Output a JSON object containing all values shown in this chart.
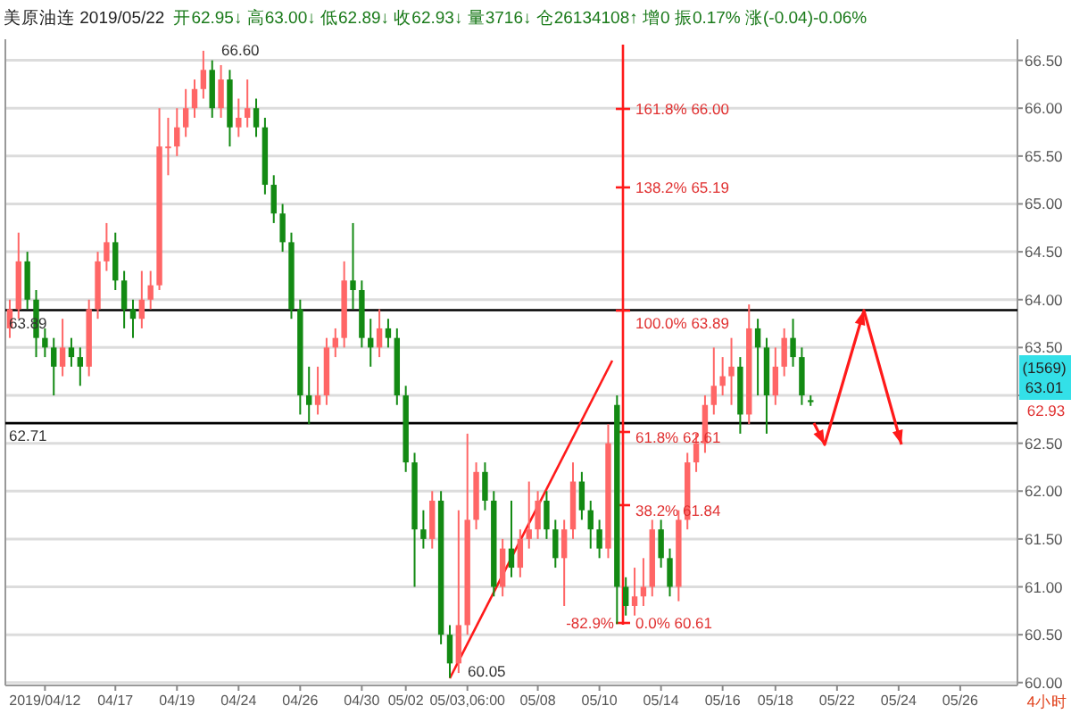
{
  "chart_data": {
    "type": "candlestick",
    "title": "美原油连 2019/05/22",
    "subtitle": "开62.95↓ 高63.00↓ 低62.89↓ 收62.93↓ 量3716↓ 仓26134108↑ 增0 振0.17% 涨(-0.04)-0.06%",
    "categories": [
      null,
      null,
      null,
      null,
      "2019/04/12",
      null,
      null,
      null,
      null,
      null,
      null,
      null,
      "04/17",
      null,
      null,
      null,
      null,
      null,
      null,
      "04/19",
      null,
      null,
      null,
      null,
      null,
      null,
      "04/24",
      null,
      null,
      null,
      null,
      null,
      null,
      "04/26",
      null,
      null,
      null,
      null,
      null,
      null,
      "04/30",
      null,
      null,
      null,
      null,
      "05/02",
      null,
      null,
      null,
      null,
      null,
      null,
      "05/03,06:00",
      null,
      null,
      null,
      null,
      null,
      null,
      null,
      "05/08",
      null,
      null,
      null,
      null,
      null,
      null,
      "05/10",
      null,
      null,
      null,
      null,
      null,
      null,
      "05/14",
      null,
      null,
      null,
      null,
      null,
      null,
      "05/16",
      null,
      null,
      null,
      null,
      null,
      "05/18",
      null,
      null,
      null,
      null,
      null,
      null,
      "05/22",
      null,
      null,
      null,
      null,
      null,
      null,
      "05/24",
      null,
      null,
      null,
      null,
      null,
      null,
      "05/26",
      null,
      null,
      null,
      null,
      null,
      null
    ],
    "ohlc": [
      [
        63.7,
        64.0,
        63.6,
        63.9
      ],
      [
        63.9,
        64.7,
        63.8,
        64.4
      ],
      [
        64.4,
        64.5,
        63.9,
        64.0
      ],
      [
        64.0,
        64.1,
        63.4,
        63.6
      ],
      [
        63.6,
        63.7,
        63.4,
        63.5
      ],
      [
        63.5,
        63.6,
        63.0,
        63.3
      ],
      [
        63.3,
        63.8,
        63.2,
        63.5
      ],
      [
        63.5,
        63.6,
        63.3,
        63.4
      ],
      [
        63.4,
        63.5,
        63.1,
        63.3
      ],
      [
        63.3,
        64.0,
        63.2,
        63.9
      ],
      [
        63.9,
        64.5,
        63.8,
        64.4
      ],
      [
        64.4,
        64.8,
        64.3,
        64.6
      ],
      [
        64.6,
        64.7,
        64.1,
        64.2
      ],
      [
        64.2,
        64.3,
        63.7,
        63.9
      ],
      [
        63.9,
        64.0,
        63.6,
        63.8
      ],
      [
        63.8,
        64.3,
        63.7,
        64.0
      ],
      [
        64.0,
        64.3,
        63.9,
        64.15
      ],
      [
        64.15,
        66.0,
        64.1,
        65.6
      ],
      [
        65.6,
        65.9,
        65.3,
        65.6
      ],
      [
        65.6,
        66.0,
        65.5,
        65.8
      ],
      [
        65.8,
        66.2,
        65.7,
        66.0
      ],
      [
        66.0,
        66.3,
        65.9,
        66.2
      ],
      [
        66.2,
        66.6,
        66.1,
        66.4
      ],
      [
        66.4,
        66.5,
        65.9,
        66.0
      ],
      [
        66.0,
        66.45,
        65.9,
        66.3
      ],
      [
        66.3,
        66.4,
        65.6,
        65.8
      ],
      [
        65.8,
        66.1,
        65.7,
        65.9
      ],
      [
        65.9,
        66.3,
        65.8,
        66.0
      ],
      [
        66.0,
        66.1,
        65.7,
        65.8
      ],
      [
        65.8,
        65.9,
        65.1,
        65.2
      ],
      [
        65.2,
        65.3,
        64.8,
        64.9
      ],
      [
        64.9,
        65.0,
        64.5,
        64.6
      ],
      [
        64.6,
        64.7,
        63.8,
        63.9
      ],
      [
        63.9,
        64.0,
        62.8,
        63.0
      ],
      [
        63.0,
        63.3,
        62.7,
        62.9
      ],
      [
        62.9,
        63.3,
        62.8,
        63.0
      ],
      [
        63.0,
        63.6,
        62.9,
        63.5
      ],
      [
        63.5,
        63.7,
        63.4,
        63.6
      ],
      [
        63.6,
        64.4,
        63.5,
        64.2
      ],
      [
        64.2,
        64.8,
        63.9,
        64.1
      ],
      [
        64.1,
        64.2,
        63.5,
        63.6
      ],
      [
        63.6,
        63.8,
        63.3,
        63.5
      ],
      [
        63.5,
        63.9,
        63.4,
        63.7
      ],
      [
        63.7,
        63.8,
        63.5,
        63.6
      ],
      [
        63.6,
        63.7,
        62.9,
        63.0
      ],
      [
        63.0,
        63.1,
        62.2,
        62.3
      ],
      [
        62.3,
        62.4,
        61.0,
        61.6
      ],
      [
        61.6,
        61.8,
        61.4,
        61.5
      ],
      [
        61.5,
        62.0,
        61.4,
        61.9
      ],
      [
        61.9,
        62.0,
        60.4,
        60.5
      ],
      [
        60.5,
        60.6,
        60.05,
        60.2
      ],
      [
        60.2,
        61.8,
        60.1,
        60.6
      ],
      [
        60.6,
        62.6,
        60.5,
        61.7
      ],
      [
        61.7,
        62.3,
        61.6,
        62.2
      ],
      [
        62.2,
        62.3,
        61.8,
        61.9
      ],
      [
        61.9,
        62.0,
        60.9,
        61.0
      ],
      [
        61.0,
        61.5,
        60.9,
        61.4
      ],
      [
        61.4,
        61.9,
        61.1,
        61.2
      ],
      [
        61.2,
        61.6,
        61.1,
        61.5
      ],
      [
        61.5,
        62.1,
        61.4,
        61.6
      ],
      [
        61.6,
        62.0,
        61.5,
        61.9
      ],
      [
        61.9,
        62.0,
        61.5,
        61.6
      ],
      [
        61.6,
        61.7,
        61.2,
        61.3
      ],
      [
        61.3,
        61.7,
        60.8,
        61.6
      ],
      [
        61.6,
        62.3,
        61.5,
        62.1
      ],
      [
        62.1,
        62.2,
        61.7,
        61.8
      ],
      [
        61.8,
        61.9,
        61.4,
        61.6
      ],
      [
        61.6,
        61.7,
        61.3,
        61.4
      ],
      [
        61.4,
        62.7,
        61.3,
        62.5
      ],
      [
        62.9,
        63.0,
        60.61,
        61.0
      ],
      [
        61.0,
        61.1,
        60.7,
        60.8
      ],
      [
        60.8,
        61.2,
        60.7,
        60.9
      ],
      [
        60.9,
        61.3,
        60.8,
        61.0
      ],
      [
        61.0,
        61.7,
        60.9,
        61.6
      ],
      [
        61.6,
        61.7,
        61.2,
        61.3
      ],
      [
        61.3,
        61.4,
        60.9,
        61.0
      ],
      [
        61.0,
        61.8,
        60.85,
        61.7
      ],
      [
        61.7,
        62.4,
        61.6,
        62.3
      ],
      [
        62.3,
        62.6,
        62.2,
        62.5
      ],
      [
        62.5,
        63.0,
        62.4,
        62.9
      ],
      [
        62.9,
        63.5,
        62.8,
        63.1
      ],
      [
        63.1,
        63.4,
        63.0,
        63.2
      ],
      [
        63.2,
        63.6,
        62.9,
        63.3
      ],
      [
        63.3,
        63.4,
        62.6,
        62.8
      ],
      [
        62.8,
        63.95,
        62.7,
        63.7
      ],
      [
        63.7,
        63.8,
        63.0,
        63.5
      ],
      [
        63.5,
        63.6,
        62.6,
        63.0
      ],
      [
        63.0,
        63.5,
        62.9,
        63.3
      ],
      [
        63.3,
        63.7,
        63.2,
        63.6
      ],
      [
        63.6,
        63.8,
        63.3,
        63.4
      ],
      [
        63.4,
        63.5,
        62.9,
        63.0
      ],
      [
        62.95,
        63.0,
        62.89,
        62.93
      ],
      null,
      null,
      null,
      null,
      null,
      null,
      null,
      null,
      null,
      null,
      null,
      null,
      null,
      null,
      null,
      null,
      null,
      null,
      null,
      null,
      null,
      null,
      null
    ],
    "colors": [
      "#ff6666",
      "#ff6666",
      "#138a13",
      "#138a13",
      "#138a13",
      "#138a13",
      "#ff6666",
      "#138a13",
      "#138a13",
      "#ff6666",
      "#ff6666",
      "#ff6666",
      "#138a13",
      "#138a13",
      "#138a13",
      "#ff6666",
      "#ff6666",
      "#ff6666",
      "#ff6666",
      "#ff6666",
      "#ff6666",
      "#ff6666",
      "#ff6666",
      "#138a13",
      "#ff6666",
      "#138a13",
      "#ff6666",
      "#ff6666",
      "#138a13",
      "#138a13",
      "#138a13",
      "#138a13",
      "#138a13",
      "#138a13",
      "#138a13",
      "#ff6666",
      "#ff6666",
      "#ff6666",
      "#ff6666",
      "#138a13",
      "#138a13",
      "#138a13",
      "#ff6666",
      "#138a13",
      "#138a13",
      "#138a13",
      "#138a13",
      "#138a13",
      "#ff6666",
      "#138a13",
      "#138a13",
      "#ff6666",
      "#ff6666",
      "#ff6666",
      "#138a13",
      "#138a13",
      "#ff6666",
      "#138a13",
      "#ff6666",
      "#ff6666",
      "#ff6666",
      "#138a13",
      "#138a13",
      "#ff6666",
      "#ff6666",
      "#138a13",
      "#138a13",
      "#138a13",
      "#ff6666",
      "#138a13",
      "#138a13",
      "#ff6666",
      "#ff6666",
      "#ff6666",
      "#138a13",
      "#138a13",
      "#ff6666",
      "#ff6666",
      "#ff6666",
      "#ff6666",
      "#ff6666",
      "#ff6666",
      "#ff6666",
      "#138a13",
      "#ff6666",
      "#138a13",
      "#138a13",
      "#ff6666",
      "#ff6666",
      "#138a13",
      "#138a13",
      "#138a13",
      null,
      null,
      null,
      null,
      null,
      null,
      null,
      null,
      null,
      null,
      null,
      null,
      null,
      null,
      null,
      null,
      null,
      null,
      null,
      null,
      null,
      null,
      null
    ],
    "ref_lines": [
      {
        "axis": "y",
        "value": 63.89,
        "label": "63.89",
        "color": "#000000"
      },
      {
        "axis": "y",
        "value": 62.71,
        "label": "62.71",
        "color": "#000000"
      }
    ],
    "annotations": [
      "66.60",
      "60.05",
      "161.8% 66.00",
      "138.2% 65.19",
      "100.0% 63.89",
      "61.8% 62.61",
      "38.2% 61.84",
      "0.0% 60.61",
      "-82.9%",
      "(1569)",
      "63.01",
      "62.93",
      "4小时"
    ],
    "ylim": [
      59.97,
      66.72
    ],
    "yticks": [
      {
        "value": 60,
        "label": "60.00"
      },
      {
        "value": 60.5,
        "label": "60.50"
      },
      {
        "value": 61,
        "label": "61.00"
      },
      {
        "value": 61.5,
        "label": "61.50"
      },
      {
        "value": 62,
        "label": "62.00"
      },
      {
        "value": 62.5,
        "label": "62.50"
      },
      {
        "value": 63,
        "label": null
      },
      {
        "value": 63.5,
        "label": "63.50"
      },
      {
        "value": 64,
        "label": "64.00"
      },
      {
        "value": 64.5,
        "label": "64.50"
      },
      {
        "value": 65,
        "label": "65.00"
      },
      {
        "value": 65.5,
        "label": "65.50"
      },
      {
        "value": 66,
        "label": "66.00"
      },
      {
        "value": 66.5,
        "label": "66.50"
      }
    ],
    "grid": "y"
  }
}
